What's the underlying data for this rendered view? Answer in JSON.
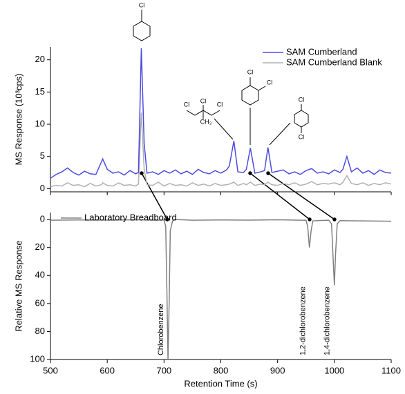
{
  "chart_data": [
    {
      "type": "line",
      "ylabel": "MS Response (10³cps)",
      "x": [
        500,
        510,
        520,
        530,
        540,
        550,
        560,
        570,
        580,
        590,
        592,
        600,
        610,
        620,
        630,
        640,
        650,
        655,
        660,
        665,
        670,
        680,
        690,
        700,
        710,
        720,
        730,
        740,
        750,
        760,
        770,
        780,
        790,
        800,
        810,
        815,
        823,
        830,
        840,
        845,
        852,
        860,
        870,
        877,
        883,
        890,
        900,
        910,
        920,
        930,
        940,
        950,
        960,
        970,
        980,
        990,
        1000,
        1010,
        1015,
        1022,
        1030,
        1040,
        1050,
        1060,
        1070,
        1080,
        1090,
        1100
      ],
      "series": [
        {
          "name": "SAM Cumberland",
          "color": "#4b4be0",
          "values": [
            1.6,
            2.2,
            2.6,
            3.2,
            2.5,
            2.1,
            2.7,
            2.3,
            2.2,
            4.2,
            4.6,
            3.0,
            2.4,
            2.6,
            2.1,
            2.8,
            2.3,
            2.5,
            21.8,
            7.0,
            2.4,
            2.6,
            2.2,
            2.8,
            2.4,
            2.9,
            2.3,
            2.7,
            2.2,
            3.0,
            2.5,
            2.3,
            2.8,
            2.4,
            2.9,
            3.5,
            7.4,
            2.6,
            2.5,
            3.0,
            6.3,
            2.4,
            2.6,
            2.8,
            6.4,
            2.5,
            2.7,
            2.9,
            2.3,
            2.6,
            2.2,
            2.8,
            3.1,
            2.4,
            2.6,
            2.3,
            2.9,
            2.5,
            3.0,
            5.0,
            2.6,
            3.2,
            2.4,
            2.8,
            2.2,
            2.9,
            2.5,
            2.4
          ]
        },
        {
          "name": "SAM Cumberland Blank",
          "color": "#b0b0b0",
          "values": [
            0.3,
            0.5,
            0.4,
            0.9,
            0.5,
            0.6,
            0.3,
            0.8,
            0.4,
            0.6,
            0.9,
            0.5,
            0.4,
            0.9,
            0.5,
            0.6,
            0.4,
            0.7,
            11.8,
            3.0,
            0.6,
            0.5,
            1.0,
            0.4,
            0.8,
            0.5,
            0.6,
            0.4,
            0.9,
            0.5,
            0.7,
            0.4,
            0.8,
            0.5,
            0.6,
            0.7,
            1.0,
            0.5,
            0.8,
            0.6,
            1.0,
            0.5,
            0.7,
            0.6,
            1.0,
            0.6,
            0.5,
            0.8,
            0.6,
            0.9,
            0.5,
            0.7,
            1.1,
            0.6,
            0.8,
            0.7,
            0.9,
            0.6,
            1.0,
            2.0,
            0.8,
            0.6,
            0.9,
            0.5,
            0.8,
            0.6,
            0.9,
            0.7
          ]
        }
      ],
      "xlim": [
        500,
        1100
      ],
      "ylim": [
        -0.5,
        22
      ],
      "yticks": [
        0,
        5,
        10,
        15,
        20
      ],
      "legend": "upper right",
      "annotations": [
        "Cl",
        "Cl",
        "Cl",
        "Cl",
        "CH₃",
        "Cl",
        "Cl",
        "Cl",
        "Cl"
      ]
    },
    {
      "type": "line",
      "xlabel": "Retention Time (s)",
      "ylabel": "Relative MS Response",
      "x": [
        500,
        550,
        600,
        650,
        690,
        700,
        703,
        705,
        707,
        709,
        711,
        715,
        720,
        750,
        800,
        850,
        900,
        940,
        950,
        953,
        956,
        959,
        962,
        970,
        990,
        995,
        998,
        1000,
        1002,
        1005,
        1010,
        1050,
        1100
      ],
      "series": [
        {
          "name": "Laboratory Breadboard",
          "color": "#808080",
          "values": [
            0.5,
            0.3,
            0.4,
            0.2,
            0.5,
            0.3,
            5,
            50,
            100,
            60,
            8,
            1,
            0,
            0.5,
            0.3,
            0.4,
            0.2,
            0.5,
            0.5,
            5,
            20,
            8,
            1,
            0.8,
            0.5,
            3,
            30,
            47,
            25,
            3,
            0.8,
            1,
            1.2
          ]
        }
      ],
      "xlim": [
        500,
        1100
      ],
      "xticks": [
        500,
        600,
        700,
        800,
        900,
        1000,
        1100
      ],
      "ylim": [
        -5,
        100
      ],
      "yinvert": true,
      "yticks": [
        0,
        20,
        40,
        60,
        80,
        100
      ],
      "legend": "upper left",
      "annotations": [
        {
          "x": 707,
          "text": "Chlorobenzene"
        },
        {
          "x": 957,
          "text": "1,2-dichlorobenzene"
        },
        {
          "x": 1000,
          "text": "1,4-dichlorobenzene"
        }
      ]
    }
  ]
}
